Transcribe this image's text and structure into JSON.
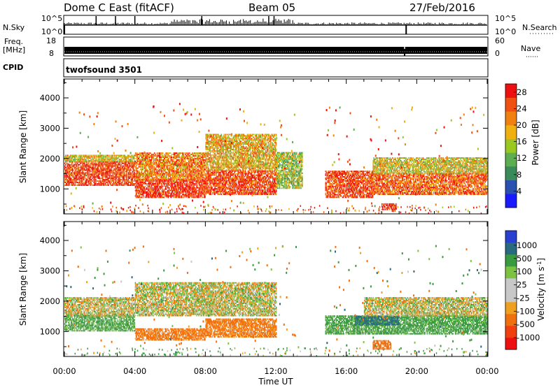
{
  "header": {
    "station": "Dome C East (fitACF)",
    "beam": "Beam 05",
    "date": "27/Feb/2016"
  },
  "top_panels": {
    "nsky_label": "N.Sky",
    "nsky_ticks": [
      "10^5",
      "10^0"
    ],
    "nsearch_label": "N.Search",
    "nsearch_ticks": [
      "10^5",
      "10^0"
    ],
    "freq_label": "Freq.",
    "freq_unit": "[MHz]",
    "freq_ticks": [
      "18",
      "8"
    ],
    "nave_label": "Nave",
    "nave_ticks": [
      "60",
      "0"
    ],
    "cpid_label": "CPID",
    "cpid_value": "twofsound 3501"
  },
  "colors": {
    "power_scale": [
      "#1a1aff",
      "#2a50b0",
      "#3a8a5a",
      "#5cae50",
      "#9ac820",
      "#f0b010",
      "#f08010",
      "#f05010",
      "#ee1010"
    ],
    "velocity_scale": [
      "#ee1010",
      "#f04010",
      "#f07010",
      "#f0a020",
      "#c8c8c8",
      "#c8c8c8",
      "#7cc440",
      "#3a9a40",
      "#2a6a80",
      "#2a40d0"
    ]
  },
  "chart_data": [
    {
      "type": "heatmap",
      "panel": "power",
      "ylabel": "Slant Range [km]",
      "yticks": [
        "1000",
        "2000",
        "3000",
        "4000"
      ],
      "ylim": [
        200,
        4600
      ],
      "xlim": [
        0,
        24
      ],
      "colorbar_label": "Power [dB]",
      "colorbar_ticks": [
        "4",
        "8",
        "12",
        "16",
        "20",
        "24",
        "28"
      ],
      "colorbar_range": [
        0,
        30
      ],
      "bands": [
        {
          "t0": 0.0,
          "t1": 4.0,
          "r0": 1100,
          "r1": 1900,
          "value": 26
        },
        {
          "t0": 0.0,
          "t1": 4.0,
          "r0": 1900,
          "r1": 2100,
          "value": 18
        },
        {
          "t0": 4.0,
          "t1": 8.0,
          "r0": 700,
          "r1": 1300,
          "value": 27
        },
        {
          "t0": 4.0,
          "t1": 8.0,
          "r0": 1300,
          "r1": 2200,
          "value": 22
        },
        {
          "t0": 8.0,
          "t1": 12.0,
          "r0": 800,
          "r1": 1600,
          "value": 26
        },
        {
          "t0": 8.0,
          "t1": 12.0,
          "r0": 1600,
          "r1": 2800,
          "value": 19
        },
        {
          "t0": 12.0,
          "t1": 13.5,
          "r0": 1000,
          "r1": 2200,
          "value": 14
        },
        {
          "t0": 14.8,
          "t1": 17.5,
          "r0": 700,
          "r1": 1600,
          "value": 26
        },
        {
          "t0": 17.5,
          "t1": 24.0,
          "r0": 800,
          "r1": 1500,
          "value": 24
        },
        {
          "t0": 17.5,
          "t1": 24.0,
          "r0": 1500,
          "r1": 2000,
          "value": 17
        },
        {
          "t0": 18.0,
          "t1": 18.8,
          "r0": 300,
          "r1": 500,
          "value": 27
        }
      ]
    },
    {
      "type": "heatmap",
      "panel": "velocity",
      "ylabel": "Slant Range [km]",
      "yticks": [
        "1000",
        "2000",
        "3000",
        "4000"
      ],
      "ylim": [
        200,
        4600
      ],
      "xlim": [
        0,
        24
      ],
      "xlabel": "Time UT",
      "xticks": [
        "00:00",
        "04:00",
        "08:00",
        "12:00",
        "16:00",
        "20:00",
        "00:00"
      ],
      "colorbar_label": "Velocity [m s-1]",
      "colorbar_ticks": [
        "1000",
        "500",
        "100",
        "25",
        "-25",
        "-100",
        "-500",
        "-1000"
      ],
      "bands": [
        {
          "t0": 0.0,
          "t1": 4.0,
          "r0": 1000,
          "r1": 1500,
          "value": 150
        },
        {
          "t0": 0.0,
          "t1": 4.0,
          "r0": 1500,
          "r1": 2100,
          "value": 0
        },
        {
          "t0": 4.0,
          "t1": 8.0,
          "r0": 700,
          "r1": 1100,
          "value": -200
        },
        {
          "t0": 4.0,
          "t1": 12.0,
          "r0": 1500,
          "r1": 2600,
          "value": 0
        },
        {
          "t0": 8.0,
          "t1": 12.0,
          "r0": 800,
          "r1": 1400,
          "value": -200
        },
        {
          "t0": 14.8,
          "t1": 24.0,
          "r0": 900,
          "r1": 1500,
          "value": 200
        },
        {
          "t0": 16.5,
          "t1": 19.0,
          "r0": 1200,
          "r1": 1500,
          "value": 600
        },
        {
          "t0": 17.0,
          "t1": 24.0,
          "r0": 1500,
          "r1": 2100,
          "value": 0
        },
        {
          "t0": 17.5,
          "t1": 18.5,
          "r0": 400,
          "r1": 700,
          "value": -300
        }
      ]
    }
  ]
}
